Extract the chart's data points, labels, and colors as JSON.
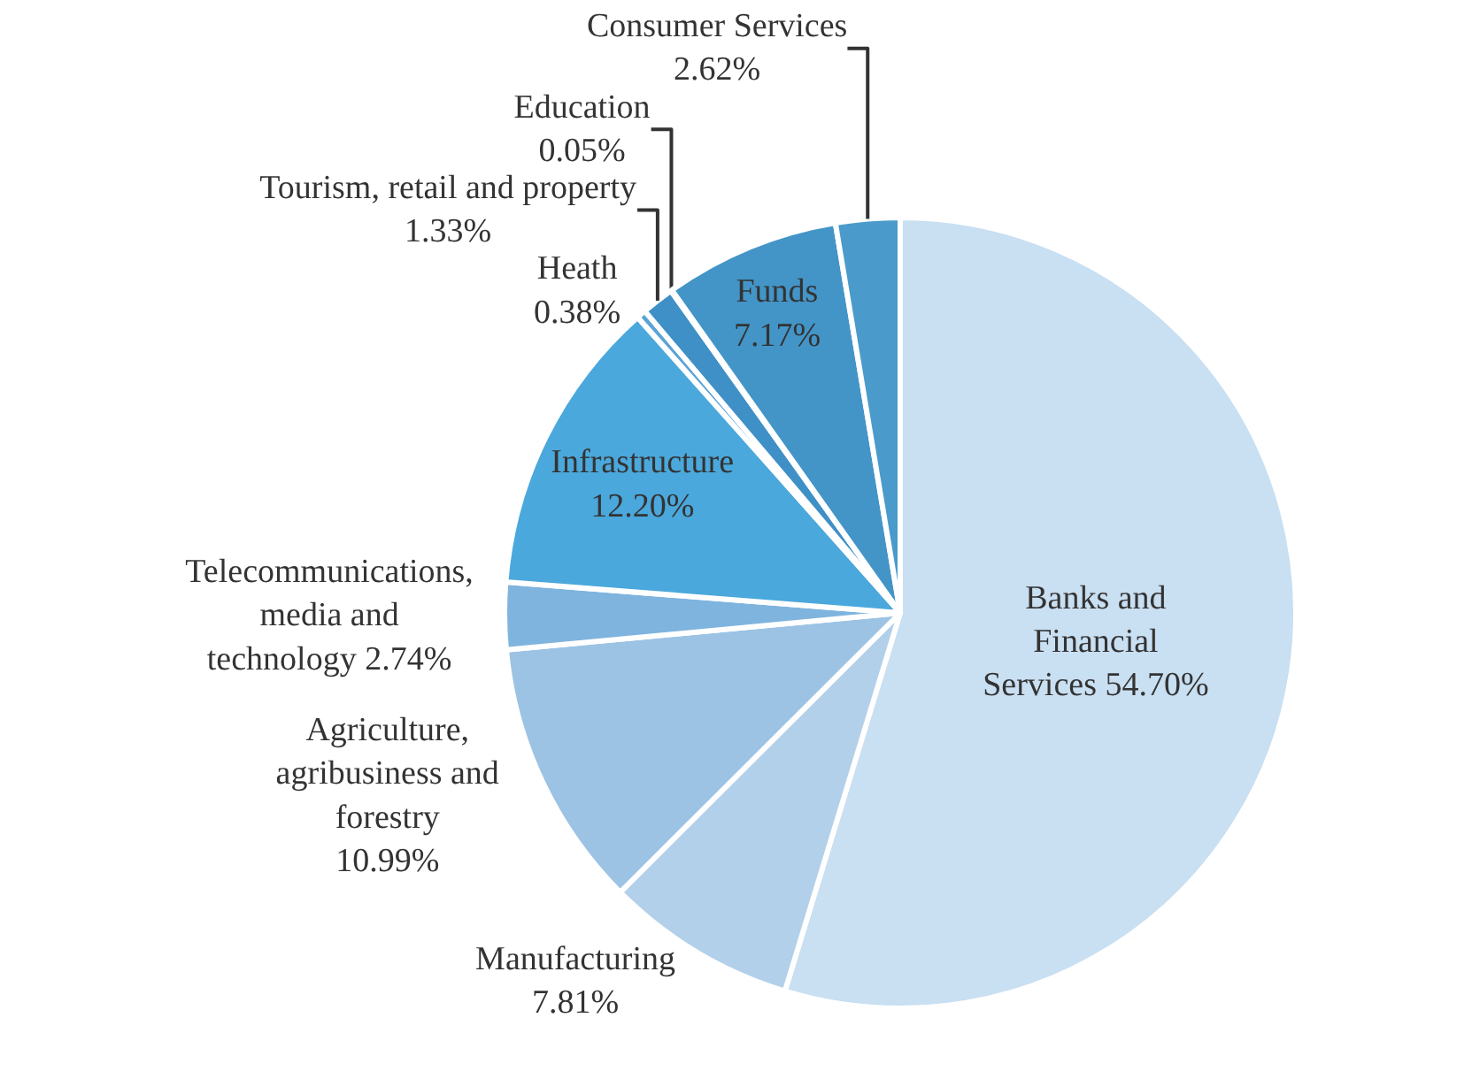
{
  "chart_data": {
    "type": "pie",
    "categories": [
      "Banks and\nFinancial\nServices",
      "Manufacturing",
      "Agriculture,\nagribusiness and\nforestry",
      "Telecommunications,\nmedia and\ntechnology",
      "Infrastructure",
      "Heath",
      "Tourism, retail and property",
      "Education",
      "Funds",
      "Consumer Services"
    ],
    "values": [
      54.7,
      7.81,
      10.99,
      2.74,
      12.2,
      0.38,
      1.33,
      0.05,
      7.17,
      2.62
    ],
    "value_labels": [
      "54.70%",
      "\n7.81%",
      "\n10.99%",
      "2.74%",
      "\n12.20%",
      "\n0.38%",
      "\n1.33%",
      "\n0.05%",
      "\n7.17%",
      "\n2.62%"
    ],
    "colors": [
      "#c9dff2",
      "#b3d0ea",
      "#9cc3e4",
      "#7fb4de",
      "#4aa8dc",
      "#5ba3d6",
      "#3f90c6",
      "#3a88c0",
      "#4395c8",
      "#4a9bcb"
    ],
    "legend": false
  }
}
